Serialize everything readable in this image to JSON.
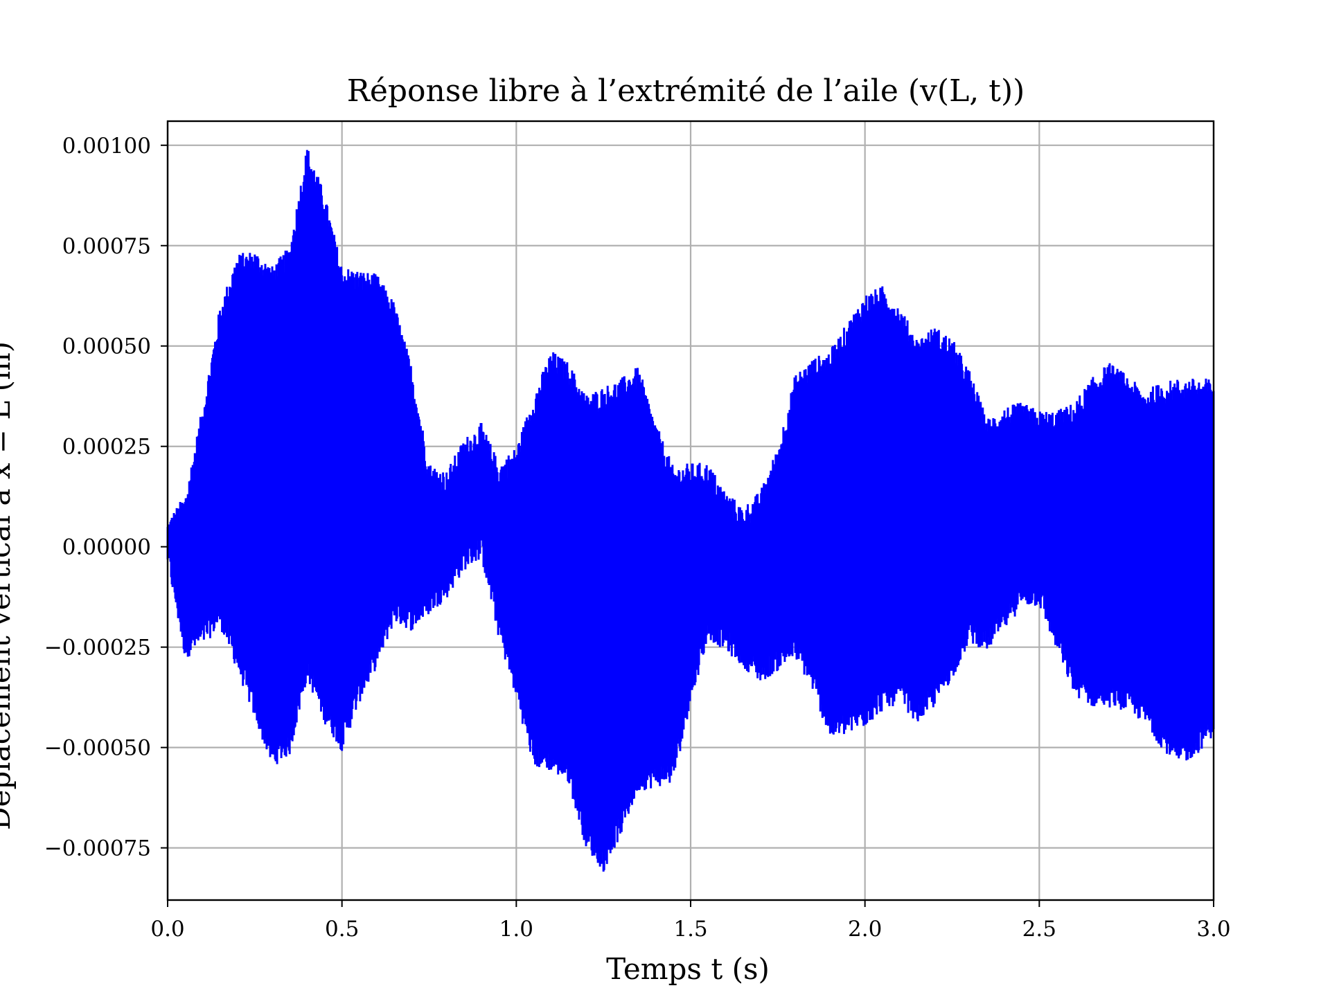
{
  "chart_data": {
    "type": "line",
    "title": "Réponse libre à l’extrémité de l’aile (v(L, t))",
    "xlabel": "Temps t (s)",
    "ylabel": "Déplacement vertical à x = L (m)",
    "xlim": [
      0.0,
      3.0
    ],
    "ylim": [
      -0.00088,
      0.00106
    ],
    "x_ticks": [
      0.0,
      0.5,
      1.0,
      1.5,
      2.0,
      2.5,
      3.0
    ],
    "x_tick_labels": [
      "0.0",
      "0.5",
      "1.0",
      "1.5",
      "2.0",
      "2.5",
      "3.0"
    ],
    "y_ticks": [
      -0.00075,
      -0.0005,
      -0.00025,
      0.0,
      0.00025,
      0.0005,
      0.00075,
      0.001
    ],
    "y_tick_labels": [
      "−0.00075",
      "−0.00050",
      "−0.00025",
      "0.00000",
      "0.00025",
      "0.00050",
      "0.00075",
      "0.00100"
    ],
    "grid": true,
    "series": [
      {
        "color": "#0000ff",
        "envelope_t": [
          0.0,
          0.05,
          0.1,
          0.15,
          0.2,
          0.25,
          0.3,
          0.35,
          0.4,
          0.45,
          0.5,
          0.55,
          0.6,
          0.65,
          0.7,
          0.75,
          0.8,
          0.85,
          0.9,
          0.95,
          1.0,
          1.05,
          1.1,
          1.15,
          1.2,
          1.25,
          1.3,
          1.35,
          1.4,
          1.45,
          1.5,
          1.55,
          1.6,
          1.65,
          1.7,
          1.75,
          1.8,
          1.85,
          1.9,
          1.95,
          2.0,
          2.05,
          2.1,
          2.15,
          2.2,
          2.25,
          2.3,
          2.35,
          2.4,
          2.45,
          2.5,
          2.55,
          2.6,
          2.65,
          2.7,
          2.75,
          2.8,
          2.85,
          2.9,
          2.95,
          3.0
        ],
        "envelope_max": [
          4e-05,
          0.0001,
          0.00032,
          0.00057,
          0.0007,
          0.00071,
          0.00067,
          0.00072,
          0.00097,
          0.00085,
          0.00067,
          0.00066,
          0.00065,
          0.00058,
          0.00042,
          0.00018,
          0.00016,
          0.00024,
          0.00028,
          0.00018,
          0.00022,
          0.00035,
          0.00046,
          0.00043,
          0.00035,
          0.00037,
          0.00039,
          0.00042,
          0.00028,
          0.00017,
          0.00018,
          0.00018,
          0.00011,
          7e-05,
          0.00011,
          0.00022,
          0.0004,
          0.00044,
          0.00046,
          0.00053,
          0.0006,
          0.00062,
          0.00057,
          0.00049,
          0.00052,
          0.00049,
          0.00041,
          0.00029,
          0.00032,
          0.00033,
          0.00031,
          0.00031,
          0.00033,
          0.00039,
          0.00043,
          0.0004,
          0.00036,
          0.00038,
          0.00039,
          0.00039,
          0.00039
        ],
        "envelope_min": [
          -2e-05,
          -0.00025,
          -0.00022,
          -0.00017,
          -0.00028,
          -0.0004,
          -0.00052,
          -0.00049,
          -0.0003,
          -0.00041,
          -0.00048,
          -0.00036,
          -0.00027,
          -0.00016,
          -0.00018,
          -0.00014,
          -0.0001,
          -3e-05,
          0.0,
          -0.0002,
          -0.00035,
          -0.00052,
          -0.00053,
          -0.00056,
          -0.00072,
          -0.00078,
          -0.00069,
          -0.00058,
          -0.00057,
          -0.00056,
          -0.00036,
          -0.0002,
          -0.00023,
          -0.00027,
          -0.00031,
          -0.00028,
          -0.00025,
          -0.00033,
          -0.00045,
          -0.00044,
          -0.00042,
          -0.00038,
          -0.00036,
          -0.00041,
          -0.00037,
          -0.0003,
          -0.00021,
          -0.00023,
          -0.00018,
          -0.00012,
          -0.00012,
          -0.00023,
          -0.00034,
          -0.00037,
          -0.00037,
          -0.00038,
          -0.00041,
          -0.00047,
          -0.00052,
          -0.00049,
          -0.00044
        ]
      }
    ]
  }
}
